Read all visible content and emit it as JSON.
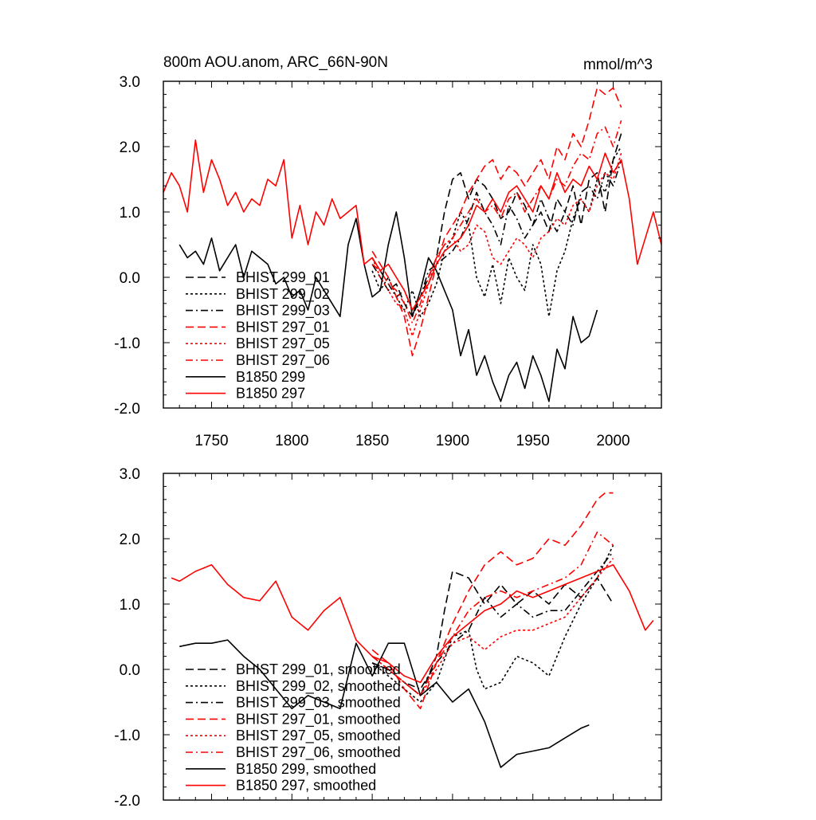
{
  "header": {
    "title": "800m AOU.anom, ARC_66N-90N",
    "units": "mmol/m^3"
  },
  "series_styles": [
    {
      "color": "#000000",
      "dash": "long-dash"
    },
    {
      "color": "#000000",
      "dash": "dotted"
    },
    {
      "color": "#000000",
      "dash": "dash-dot"
    },
    {
      "color": "#ff0000",
      "dash": "long-dash"
    },
    {
      "color": "#ff0000",
      "dash": "dotted"
    },
    {
      "color": "#ff0000",
      "dash": "dash-dot"
    },
    {
      "color": "#000000",
      "dash": "solid"
    },
    {
      "color": "#ff0000",
      "dash": "solid"
    }
  ],
  "chart_data": [
    {
      "type": "line",
      "xlim": [
        1720,
        2030
      ],
      "ylim": [
        -2.0,
        3.0
      ],
      "x_ticks": [
        "1750",
        "1800",
        "1850",
        "1900",
        "1950",
        "2000"
      ],
      "y_ticks": [
        "-2.0",
        "-1.0",
        "0.0",
        "1.0",
        "2.0",
        "3.0"
      ],
      "grid": false,
      "legend_position": "lower-left",
      "series": [
        {
          "name": "BHIST 299_01",
          "x": [
            1850,
            1855,
            1860,
            1865,
            1870,
            1875,
            1880,
            1885,
            1890,
            1895,
            1900,
            1905,
            1910,
            1915,
            1920,
            1925,
            1930,
            1935,
            1940,
            1945,
            1950,
            1955,
            1960,
            1965,
            1970,
            1975,
            1980,
            1985,
            1990,
            1995,
            2000,
            2005
          ],
          "y": [
            0.2,
            0.0,
            -0.2,
            -0.1,
            -0.4,
            -0.6,
            -0.3,
            0.0,
            0.3,
            1.0,
            1.5,
            1.6,
            1.2,
            1.5,
            1.4,
            1.2,
            0.9,
            1.0,
            1.3,
            1.1,
            0.8,
            1.0,
            0.7,
            1.2,
            1.0,
            1.4,
            0.8,
            1.5,
            1.6,
            1.0,
            1.8,
            2.2
          ]
        },
        {
          "name": "BHIST 299_02",
          "x": [
            1850,
            1855,
            1860,
            1865,
            1870,
            1875,
            1880,
            1885,
            1890,
            1895,
            1900,
            1905,
            1910,
            1915,
            1920,
            1925,
            1930,
            1935,
            1940,
            1945,
            1950,
            1955,
            1960,
            1965,
            1970,
            1975,
            1980,
            1985,
            1990,
            1995,
            2000,
            2005
          ],
          "y": [
            0.1,
            -0.2,
            0.0,
            -0.3,
            -0.5,
            -0.2,
            -0.6,
            -0.4,
            -0.1,
            0.4,
            0.6,
            1.0,
            0.8,
            0.0,
            -0.3,
            0.2,
            -0.4,
            0.3,
            0.0,
            -0.2,
            0.5,
            0.2,
            -0.6,
            0.1,
            0.4,
            0.9,
            1.2,
            1.0,
            1.5,
            1.3,
            1.8,
            2.0
          ]
        },
        {
          "name": "BHIST 299_03",
          "x": [
            1850,
            1855,
            1860,
            1865,
            1870,
            1875,
            1880,
            1885,
            1890,
            1895,
            1900,
            1905,
            1910,
            1915,
            1920,
            1925,
            1930,
            1935,
            1940,
            1945,
            1950,
            1955,
            1960,
            1965,
            1970,
            1975,
            1980,
            1985,
            1990,
            1995,
            2000,
            2005
          ],
          "y": [
            0.3,
            0.1,
            -0.1,
            -0.3,
            -0.2,
            -0.5,
            -0.3,
            0.1,
            0.2,
            0.3,
            0.4,
            0.6,
            0.9,
            1.3,
            1.0,
            0.8,
            0.5,
            1.1,
            0.9,
            0.6,
            0.8,
            1.2,
            0.9,
            0.7,
            1.0,
            0.8,
            1.3,
            1.4,
            1.2,
            1.6,
            1.4,
            1.8
          ]
        },
        {
          "name": "BHIST 297_01",
          "x": [
            1850,
            1855,
            1860,
            1865,
            1870,
            1875,
            1880,
            1885,
            1890,
            1895,
            1900,
            1905,
            1910,
            1915,
            1920,
            1925,
            1930,
            1935,
            1940,
            1945,
            1950,
            1955,
            1960,
            1965,
            1970,
            1975,
            1980,
            1985,
            1990,
            1995,
            2000,
            2005
          ],
          "y": [
            0.4,
            0.2,
            0.0,
            -0.3,
            -0.6,
            -1.2,
            -0.8,
            -0.3,
            0.2,
            0.6,
            0.8,
            1.0,
            1.3,
            1.5,
            1.7,
            1.8,
            1.5,
            1.7,
            1.6,
            1.4,
            1.6,
            1.8,
            1.5,
            2.0,
            1.8,
            2.2,
            2.0,
            2.4,
            2.9,
            2.8,
            2.9,
            2.6
          ]
        },
        {
          "name": "BHIST 297_05",
          "x": [
            1850,
            1855,
            1860,
            1865,
            1870,
            1875,
            1880,
            1885,
            1890,
            1895,
            1900,
            1905,
            1910,
            1915,
            1920,
            1925,
            1930,
            1935,
            1940,
            1945,
            1950,
            1955,
            1960,
            1965,
            1970,
            1975,
            1980,
            1985,
            1990,
            1995,
            2000,
            2005
          ],
          "y": [
            0.3,
            0.0,
            -0.2,
            -0.4,
            -0.5,
            -0.9,
            -0.5,
            -0.1,
            0.3,
            0.5,
            0.6,
            0.4,
            0.5,
            0.8,
            0.7,
            0.3,
            0.2,
            0.4,
            0.6,
            0.5,
            0.3,
            0.6,
            0.7,
            0.9,
            0.8,
            1.1,
            1.2,
            1.0,
            1.4,
            1.6,
            1.5,
            1.9
          ]
        },
        {
          "name": "BHIST 297_06",
          "x": [
            1850,
            1855,
            1860,
            1865,
            1870,
            1875,
            1880,
            1885,
            1890,
            1895,
            1900,
            1905,
            1910,
            1915,
            1920,
            1925,
            1930,
            1935,
            1940,
            1945,
            1950,
            1955,
            1960,
            1965,
            1970,
            1975,
            1980,
            1985,
            1990,
            1995,
            2000,
            2005
          ],
          "y": [
            0.2,
            0.1,
            -0.1,
            -0.2,
            -0.4,
            -0.7,
            -0.4,
            0.0,
            0.3,
            0.5,
            0.6,
            0.8,
            1.0,
            1.2,
            1.0,
            1.1,
            0.9,
            1.2,
            1.3,
            1.0,
            1.2,
            1.4,
            1.2,
            1.5,
            1.4,
            1.7,
            1.9,
            1.8,
            2.2,
            2.3,
            2.0,
            2.4
          ]
        },
        {
          "name": "B1850 299",
          "x": [
            1730,
            1735,
            1740,
            1745,
            1750,
            1755,
            1760,
            1765,
            1770,
            1775,
            1780,
            1785,
            1790,
            1795,
            1800,
            1805,
            1810,
            1815,
            1820,
            1825,
            1830,
            1835,
            1840,
            1845,
            1850,
            1855,
            1860,
            1865,
            1870,
            1875,
            1880,
            1885,
            1890,
            1895,
            1900,
            1905,
            1910,
            1915,
            1920,
            1925,
            1930,
            1935,
            1940,
            1945,
            1950,
            1955,
            1960,
            1965,
            1970,
            1975,
            1980,
            1985,
            1990
          ],
          "y": [
            0.5,
            0.3,
            0.4,
            0.2,
            0.6,
            0.1,
            0.3,
            0.5,
            0.0,
            0.4,
            0.3,
            0.2,
            -0.1,
            0.0,
            -0.3,
            -0.2,
            -0.5,
            0.0,
            -0.2,
            -0.4,
            -0.6,
            0.5,
            0.9,
            0.2,
            -0.3,
            -0.2,
            0.5,
            1.0,
            0.3,
            -0.6,
            -0.2,
            0.3,
            0.1,
            -0.2,
            -0.5,
            -1.2,
            -0.8,
            -1.5,
            -1.2,
            -1.6,
            -1.9,
            -1.5,
            -1.3,
            -1.7,
            -1.2,
            -1.5,
            -1.9,
            -1.1,
            -1.4,
            -0.6,
            -1.0,
            -0.9,
            -0.5
          ]
        },
        {
          "name": "B1850 297",
          "x": [
            1720,
            1725,
            1730,
            1735,
            1740,
            1745,
            1750,
            1755,
            1760,
            1765,
            1770,
            1775,
            1780,
            1785,
            1790,
            1795,
            1800,
            1805,
            1810,
            1815,
            1820,
            1825,
            1830,
            1835,
            1840,
            1845,
            1850,
            1855,
            1860,
            1865,
            1870,
            1875,
            1880,
            1885,
            1890,
            1895,
            1900,
            1905,
            1910,
            1915,
            1920,
            1925,
            1930,
            1935,
            1940,
            1945,
            1950,
            1955,
            1960,
            1965,
            1970,
            1975,
            1980,
            1985,
            1990,
            1995,
            2000,
            2005,
            2010,
            2015,
            2020,
            2025,
            2030
          ],
          "y": [
            1.3,
            1.6,
            1.4,
            1.0,
            2.1,
            1.3,
            1.8,
            1.5,
            1.1,
            1.3,
            1.0,
            1.2,
            1.1,
            1.5,
            1.4,
            1.8,
            0.6,
            1.1,
            0.5,
            1.0,
            0.8,
            1.2,
            0.9,
            1.0,
            1.1,
            0.2,
            0.3,
            0.1,
            0.2,
            0.0,
            -0.2,
            -0.5,
            -0.3,
            -0.1,
            0.2,
            0.4,
            0.5,
            0.6,
            0.8,
            1.1,
            1.0,
            1.2,
            1.0,
            1.3,
            1.4,
            1.2,
            1.0,
            1.4,
            1.2,
            1.6,
            1.3,
            1.5,
            1.4,
            1.7,
            1.5,
            1.9,
            1.6,
            1.8,
            1.2,
            0.2,
            0.6,
            1.0,
            0.5
          ]
        }
      ]
    },
    {
      "type": "line",
      "xlim": [
        1720,
        2030
      ],
      "ylim": [
        -2.0,
        3.0
      ],
      "y_ticks": [
        "-2.0",
        "-1.0",
        "0.0",
        "1.0",
        "2.0",
        "3.0"
      ],
      "grid": false,
      "legend_position": "lower-left",
      "series": [
        {
          "name": "BHIST 299_01, smoothed",
          "x": [
            1850,
            1860,
            1870,
            1880,
            1890,
            1895,
            1900,
            1910,
            1920,
            1930,
            1940,
            1950,
            1960,
            1970,
            1980,
            1990,
            2000
          ],
          "y": [
            0.1,
            0.0,
            -0.2,
            -0.4,
            0.2,
            0.9,
            1.5,
            1.4,
            1.0,
            1.3,
            1.0,
            1.2,
            1.0,
            1.3,
            1.1,
            1.4,
            1.0
          ]
        },
        {
          "name": "BHIST 299_02, smoothed",
          "x": [
            1850,
            1860,
            1870,
            1880,
            1890,
            1900,
            1910,
            1915,
            1920,
            1930,
            1940,
            1950,
            1960,
            1970,
            1980,
            1990,
            2000
          ],
          "y": [
            0.1,
            -0.1,
            -0.3,
            -0.5,
            -0.2,
            0.5,
            0.6,
            0.0,
            -0.3,
            -0.2,
            0.2,
            0.1,
            -0.1,
            0.5,
            1.0,
            1.4,
            1.9
          ]
        },
        {
          "name": "BHIST 299_03, smoothed",
          "x": [
            1850,
            1860,
            1870,
            1880,
            1890,
            1900,
            1910,
            1920,
            1930,
            1940,
            1950,
            1960,
            1970,
            1980,
            1990,
            2000
          ],
          "y": [
            0.2,
            0.0,
            -0.2,
            -0.3,
            0.1,
            0.4,
            0.6,
            1.1,
            0.8,
            1.0,
            0.8,
            0.9,
            0.9,
            1.2,
            1.5,
            1.8
          ]
        },
        {
          "name": "BHIST 297_01, smoothed",
          "x": [
            1850,
            1860,
            1870,
            1880,
            1890,
            1900,
            1910,
            1920,
            1930,
            1940,
            1950,
            1960,
            1970,
            1980,
            1990,
            1995,
            2000
          ],
          "y": [
            0.3,
            0.1,
            -0.3,
            -0.6,
            0.1,
            0.7,
            1.2,
            1.6,
            1.8,
            1.6,
            1.7,
            2.0,
            1.9,
            2.2,
            2.6,
            2.7,
            2.7
          ]
        },
        {
          "name": "BHIST 297_05, smoothed",
          "x": [
            1850,
            1860,
            1870,
            1880,
            1890,
            1900,
            1910,
            1920,
            1930,
            1940,
            1950,
            1960,
            1970,
            1980,
            1990,
            2000
          ],
          "y": [
            0.2,
            0.0,
            -0.2,
            -0.4,
            0.0,
            0.4,
            0.5,
            0.3,
            0.5,
            0.6,
            0.6,
            0.7,
            0.8,
            1.1,
            1.4,
            1.7
          ]
        },
        {
          "name": "BHIST 297_06, smoothed",
          "x": [
            1850,
            1860,
            1870,
            1880,
            1890,
            1900,
            1910,
            1920,
            1930,
            1940,
            1950,
            1960,
            1970,
            1980,
            1990,
            2000
          ],
          "y": [
            0.2,
            0.0,
            -0.2,
            -0.4,
            0.1,
            0.5,
            0.9,
            1.1,
            1.2,
            1.1,
            1.2,
            1.3,
            1.4,
            1.6,
            2.1,
            1.9
          ]
        },
        {
          "name": "B1850 299, smoothed",
          "x": [
            1730,
            1740,
            1750,
            1760,
            1770,
            1780,
            1790,
            1800,
            1810,
            1820,
            1830,
            1840,
            1850,
            1860,
            1870,
            1880,
            1890,
            1900,
            1910,
            1920,
            1930,
            1940,
            1950,
            1960,
            1970,
            1980,
            1985
          ],
          "y": [
            0.35,
            0.4,
            0.4,
            0.45,
            0.2,
            0.0,
            -0.3,
            -0.6,
            -0.4,
            -0.5,
            -0.6,
            0.4,
            -0.1,
            0.4,
            0.4,
            -0.4,
            -0.2,
            -0.5,
            -0.3,
            -0.8,
            -1.5,
            -1.3,
            -1.25,
            -1.2,
            -1.05,
            -0.9,
            -0.85
          ]
        },
        {
          "name": "B1850 297, smoothed",
          "x": [
            1725,
            1730,
            1740,
            1750,
            1760,
            1770,
            1780,
            1790,
            1800,
            1810,
            1820,
            1830,
            1840,
            1850,
            1860,
            1870,
            1880,
            1890,
            1900,
            1910,
            1920,
            1930,
            1940,
            1950,
            1960,
            1970,
            1980,
            1990,
            2000,
            2010,
            2020,
            2025
          ],
          "y": [
            1.4,
            1.35,
            1.5,
            1.6,
            1.3,
            1.1,
            1.05,
            1.35,
            0.8,
            0.6,
            0.9,
            1.1,
            0.45,
            0.2,
            0.1,
            -0.1,
            -0.2,
            0.2,
            0.5,
            0.7,
            0.9,
            1.0,
            1.2,
            1.1,
            1.2,
            1.3,
            1.4,
            1.5,
            1.6,
            1.2,
            0.6,
            0.75
          ]
        }
      ]
    }
  ]
}
